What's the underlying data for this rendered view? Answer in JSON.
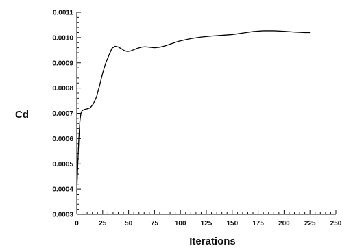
{
  "chart_data": {
    "type": "line",
    "title": "",
    "xlabel": "Iterations",
    "ylabel": "Cd",
    "xlim": [
      0,
      250
    ],
    "ylim": [
      0.0003,
      0.0011
    ],
    "xticks": [
      0,
      25,
      50,
      75,
      100,
      125,
      150,
      175,
      200,
      225,
      250
    ],
    "xtick_labels": [
      "0",
      "25",
      "50",
      "75",
      "100",
      "125",
      "150",
      "175",
      "200",
      "225",
      "250"
    ],
    "yticks": [
      0.0003,
      0.0004,
      0.0005,
      0.0006,
      0.0007,
      0.0008,
      0.0009,
      0.001,
      0.0011
    ],
    "ytick_labels": [
      "0.0003",
      "0.0004",
      "0.0005",
      "0.0006",
      "0.0007",
      "0.0008",
      "0.0009",
      "0.0010",
      "0.0011"
    ],
    "grid": false,
    "legend": "none",
    "line_color": "#000000",
    "series": [
      {
        "x": [
          0,
          1,
          2,
          3,
          4,
          5,
          7,
          10,
          13,
          16,
          19,
          22,
          25,
          28,
          31,
          34,
          37,
          40,
          43,
          46,
          49,
          52,
          55,
          58,
          62,
          66,
          70,
          75,
          80,
          85,
          90,
          95,
          100,
          110,
          120,
          130,
          140,
          150,
          160,
          170,
          180,
          190,
          200,
          210,
          220,
          225
        ],
        "values": [
          0.00039,
          0.0005,
          0.0006,
          0.00067,
          0.0007,
          0.00071,
          0.000715,
          0.000718,
          0.000722,
          0.000738,
          0.000765,
          0.00081,
          0.00086,
          0.0009,
          0.00093,
          0.000958,
          0.000966,
          0.000963,
          0.000956,
          0.000948,
          0.000945,
          0.000947,
          0.000952,
          0.000957,
          0.000962,
          0.000964,
          0.000962,
          0.00096,
          0.000962,
          0.000967,
          0.000974,
          0.000981,
          0.000987,
          0.000996,
          0.001002,
          0.001006,
          0.001009,
          0.001012,
          0.001018,
          0.001024,
          0.001027,
          0.001027,
          0.001025,
          0.001022,
          0.00102,
          0.00102
        ]
      }
    ]
  }
}
